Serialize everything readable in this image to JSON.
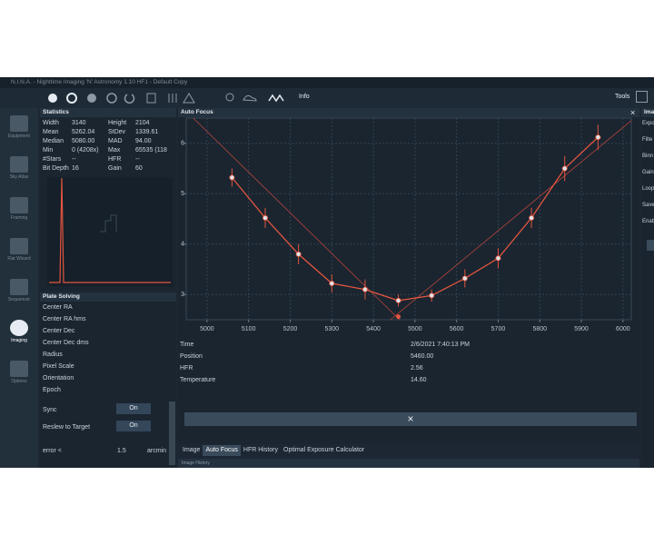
{
  "window": {
    "title": "N.I.N.A. - Nighttime Imaging 'N' Astronomy 1.10 HF1 - Default Copy"
  },
  "toolbar": {
    "info": "Info",
    "tools": "Tools"
  },
  "sidebar": {
    "items": [
      "Equipment",
      "Sky Atlas",
      "Framing",
      "Flat Wizard",
      "Sequencer",
      "Imaging",
      "Options"
    ]
  },
  "statistics": {
    "title": "Statistics",
    "rows": [
      [
        "Width",
        "3140",
        "Height",
        "2104"
      ],
      [
        "Mean",
        "5262.04",
        "StDev",
        "1339.61"
      ],
      [
        "Median",
        "5080.00",
        "MAD",
        "94.00"
      ],
      [
        "Min",
        "0 (4208x)",
        "Max",
        "65535 (118"
      ],
      [
        "#Stars",
        "--",
        "HFR",
        "--"
      ],
      [
        "Bit Depth",
        "16",
        "Gain",
        "60"
      ]
    ]
  },
  "plate_solving": {
    "title": "Plate Solving",
    "fields": [
      "Center RA",
      "Center RA hms",
      "Center Dec",
      "Center Dec dms",
      "Radius",
      "Pixel Scale",
      "Orientation",
      "Epoch"
    ],
    "sync": {
      "label": "Sync",
      "value": "On"
    },
    "reslew": {
      "label": "Reslew to Target",
      "value": "On"
    },
    "error": {
      "label": "error <",
      "value": "1.5",
      "unit": "arcmin"
    }
  },
  "auto_focus": {
    "title": "Auto Focus",
    "chart_data": {
      "type": "scatter",
      "x": [
        5060,
        5140,
        5220,
        5300,
        5380,
        5460,
        5540,
        5620,
        5700,
        5780,
        5860,
        5940
      ],
      "values": [
        5.32,
        4.52,
        3.8,
        3.22,
        3.1,
        2.88,
        2.98,
        3.32,
        3.72,
        4.52,
        5.5,
        6.12
      ],
      "errors": [
        0.18,
        0.2,
        0.2,
        0.18,
        0.2,
        0.12,
        0.12,
        0.18,
        0.2,
        0.2,
        0.25,
        0.25
      ],
      "color": "#e2553f",
      "trendlines": [
        {
          "x": [
            4967,
            5463
          ],
          "values": [
            6.5,
            2.5
          ]
        },
        {
          "x": [
            5441,
            6020
          ],
          "values": [
            2.5,
            6.45
          ]
        }
      ],
      "focus_point": {
        "x": 5460,
        "y": 2.56
      },
      "xlim": [
        4950,
        6020
      ],
      "xticks": [
        5000,
        5100,
        5200,
        5300,
        5400,
        5500,
        5600,
        5700,
        5800,
        5900,
        6000
      ],
      "ylim": [
        2.5,
        6.5
      ],
      "yticks": [
        3,
        4,
        5,
        6
      ],
      "grid": true
    },
    "info": [
      [
        "Time",
        "2/6/2021 7:40:13 PM"
      ],
      [
        "Position",
        "5460.00"
      ],
      [
        "HFR",
        "2.56"
      ],
      [
        "Temperature",
        "14.60"
      ]
    ]
  },
  "tabs": [
    "Image",
    "Auto Focus",
    "HFR History",
    "Optimal Exposure Calculator"
  ],
  "bottom_panel": {
    "title": "Image History"
  },
  "right_panel": {
    "title": "Imag",
    "items": [
      "Expo",
      "Filte",
      "Binn",
      "Gain",
      "Loop",
      "Save",
      "Enab"
    ]
  }
}
